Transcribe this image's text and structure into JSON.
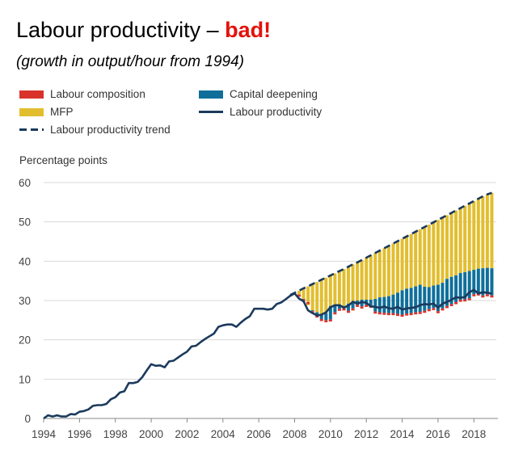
{
  "chart_data": {
    "type": "bar",
    "title_main": "Labour productivity –",
    "title_emphasis": "bad!",
    "subtitle": "(growth in output/hour from 1994)",
    "ylabel": "Percentage points",
    "xlim": [
      1994,
      2019.25
    ],
    "ylim": [
      0,
      60
    ],
    "yticks": [
      0,
      10,
      20,
      30,
      40,
      50,
      60
    ],
    "xticks": [
      1994,
      1996,
      1998,
      2000,
      2002,
      2004,
      2006,
      2008,
      2010,
      2012,
      2014,
      2016,
      2018
    ],
    "grid": true,
    "colors": {
      "labour_composition": "#d9322b",
      "capital_deepening": "#0f6f9a",
      "mfp": "#e2be2f",
      "labour_productivity": "#1b3a5c",
      "trend": "#1b3a5c",
      "grid": "#d9d9d9"
    },
    "legend": {
      "labour_composition": "Labour composition",
      "capital_deepening": "Capital deepening",
      "mfp": "MFP",
      "labour_productivity": "Labour productivity",
      "trend": "Labour productivity trend"
    },
    "labour_productivity": {
      "x": [
        1994.0,
        1994.25,
        1994.5,
        1994.75,
        1995.0,
        1995.25,
        1995.5,
        1995.75,
        1996.0,
        1996.25,
        1996.5,
        1996.75,
        1997.0,
        1997.25,
        1997.5,
        1997.75,
        1998.0,
        1998.25,
        1998.5,
        1998.75,
        1999.0,
        1999.25,
        1999.5,
        1999.75,
        2000.0,
        2000.25,
        2000.5,
        2000.75,
        2001.0,
        2001.25,
        2001.5,
        2001.75,
        2002.0,
        2002.25,
        2002.5,
        2002.75,
        2003.0,
        2003.25,
        2003.5,
        2003.75,
        2004.0,
        2004.25,
        2004.5,
        2004.75,
        2005.0,
        2005.25,
        2005.5,
        2005.75,
        2006.0,
        2006.25,
        2006.5,
        2006.75,
        2007.0,
        2007.25,
        2007.5,
        2007.75,
        2008.0,
        2008.25,
        2008.5,
        2008.75,
        2009.0,
        2009.25,
        2009.5,
        2009.75,
        2010.0,
        2010.25,
        2010.5,
        2010.75,
        2011.0,
        2011.25,
        2011.5,
        2011.75,
        2012.0,
        2012.25,
        2012.5,
        2012.75,
        2013.0,
        2013.25,
        2013.5,
        2013.75,
        2014.0,
        2014.25,
        2014.5,
        2014.75,
        2015.0,
        2015.25,
        2015.5,
        2015.75,
        2016.0,
        2016.25,
        2016.5,
        2016.75,
        2017.0,
        2017.25,
        2017.5,
        2017.75,
        2018.0,
        2018.25,
        2018.5,
        2018.75,
        2019.0
      ],
      "y": [
        0,
        0.8,
        0.5,
        0.8,
        0.5,
        0.5,
        1.1,
        1.0,
        1.7,
        1.9,
        2.3,
        3.2,
        3.4,
        3.4,
        3.7,
        4.9,
        5.4,
        6.6,
        6.9,
        9.0,
        9.0,
        9.3,
        10.5,
        12.2,
        13.8,
        13.4,
        13.5,
        13.0,
        14.5,
        14.7,
        15.5,
        16.3,
        17.0,
        18.3,
        18.5,
        19.4,
        20.2,
        20.9,
        21.6,
        23.3,
        23.7,
        23.9,
        23.9,
        23.3,
        24.4,
        25.3,
        26.0,
        27.9,
        27.9,
        27.9,
        27.7,
        27.9,
        29.1,
        29.5,
        30.3,
        31.2,
        31.8,
        30.5,
        29.8,
        27.5,
        26.8,
        26.2,
        26.4,
        27.0,
        28.3,
        28.8,
        28.8,
        28.2,
        28.7,
        29.7,
        29.2,
        29.6,
        29.4,
        28.5,
        28.4,
        28.1,
        28.5,
        28.0,
        27.9,
        28.4,
        27.7,
        28.0,
        28.1,
        28.3,
        28.8,
        29.1,
        29.0,
        29.2,
        28.2,
        29.2,
        29.6,
        30.2,
        30.8,
        30.7,
        30.9,
        32.1,
        32.7,
        31.8,
        32.1,
        32.0,
        31.7
      ]
    },
    "bars": {
      "x": [
        2008.25,
        2008.5,
        2008.75,
        2009.0,
        2009.25,
        2009.5,
        2009.75,
        2010.0,
        2010.25,
        2010.5,
        2010.75,
        2011.0,
        2011.25,
        2011.5,
        2011.75,
        2012.0,
        2012.25,
        2012.5,
        2012.75,
        2013.0,
        2013.25,
        2013.5,
        2013.75,
        2014.0,
        2014.25,
        2014.5,
        2014.75,
        2015.0,
        2015.25,
        2015.5,
        2015.75,
        2016.0,
        2016.25,
        2016.5,
        2016.75,
        2017.0,
        2017.25,
        2017.5,
        2017.75,
        2018.0,
        2018.25,
        2018.5,
        2018.75,
        2019.0
      ],
      "total": [
        32.5,
        33.1,
        33.6,
        34.2,
        34.7,
        35.3,
        35.8,
        36.4,
        36.9,
        37.5,
        38.0,
        38.6,
        39.2,
        39.7,
        40.3,
        40.9,
        41.5,
        42.1,
        42.7,
        43.3,
        43.9,
        44.5,
        45.1,
        45.7,
        46.3,
        46.9,
        47.5,
        48.1,
        48.7,
        49.3,
        49.9,
        50.5,
        51.1,
        51.7,
        52.3,
        52.9,
        53.5,
        54.1,
        54.7,
        55.3,
        55.9,
        56.5,
        57.0,
        57.4
      ],
      "capital_top": [
        31.0,
        30.4,
        28.8,
        27.5,
        27.0,
        26.5,
        26.8,
        28.6,
        29.0,
        29.0,
        28.6,
        29.2,
        29.6,
        30.0,
        30.2,
        30.2,
        30.2,
        30.4,
        30.8,
        30.9,
        31.1,
        31.5,
        32.0,
        32.6,
        33.0,
        33.2,
        33.6,
        34.0,
        33.5,
        33.4,
        33.8,
        34.0,
        34.5,
        35.5,
        36.0,
        36.4,
        37.0,
        37.2,
        37.5,
        37.8,
        38.1,
        38.2,
        38.3,
        38.2
      ],
      "labour_comp_bottom": [
        31.5,
        30.3,
        29.6,
        27.3,
        26.2,
        25.3,
        25.0,
        25.2,
        27.0,
        27.9,
        28.0,
        27.4,
        28.0,
        28.9,
        28.5,
        28.9,
        28.7,
        27.2,
        27.0,
        26.9,
        26.8,
        26.8,
        26.6,
        26.4,
        26.7,
        26.8,
        27.0,
        27.1,
        27.4,
        27.8,
        28.1,
        27.3,
        28.0,
        28.6,
        29.1,
        29.6,
        30.2,
        30.3,
        30.6,
        31.6,
        31.8,
        31.3,
        31.6,
        31.3
      ]
    }
  }
}
